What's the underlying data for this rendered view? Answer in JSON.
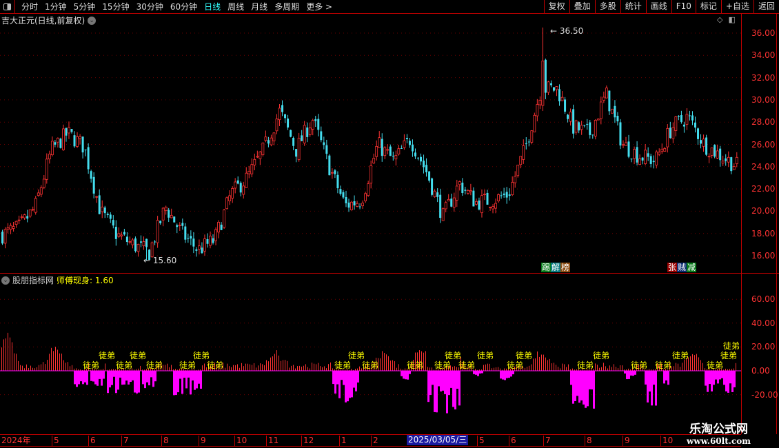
{
  "toolbar": {
    "periods": [
      "分时",
      "1分钟",
      "5分钟",
      "15分钟",
      "30分钟",
      "60分钟",
      "日线",
      "周线",
      "月线",
      "多周期",
      "更多 >"
    ],
    "active_period": "日线",
    "tools": [
      "复权",
      "叠加",
      "多股",
      "统计",
      "画线",
      "F10",
      "标记",
      "+自选",
      "返回"
    ]
  },
  "main": {
    "title": "吉大正元(日线,前复权)",
    "price_ticks": [
      "36.00",
      "34.00",
      "32.00",
      "30.00",
      "28.00",
      "26.00",
      "24.00",
      "22.00",
      "20.00",
      "18.00",
      "16.00"
    ],
    "max_label": "36.50",
    "min_label": "15.60",
    "tag_left": [
      "踢",
      "解",
      "榜"
    ],
    "tag_right": [
      "张",
      "贼",
      "减"
    ],
    "approx_closes": [
      17.9,
      18.5,
      20.3,
      25.5,
      27,
      25.8,
      20,
      17.9,
      17,
      16.3,
      20.4,
      18,
      16.5,
      17.4,
      21.5,
      23,
      25.5,
      29,
      25.5,
      28.3,
      24.1,
      20.5,
      21,
      26,
      24.5,
      26.5,
      23.5,
      19.5,
      22.5,
      20.8,
      21,
      21.5,
      25.5,
      31,
      31,
      27.5,
      27,
      30.5,
      26,
      25,
      24.5,
      27.5,
      28.5,
      26,
      25,
      24.1
    ],
    "colors": {
      "up": "#ff3333",
      "down": "#44ddee"
    }
  },
  "indicator": {
    "source": "股朋指标网",
    "name": "师傅现身",
    "value": ": 1.60",
    "ticks": [
      "60.00",
      "40.00",
      "20.00",
      "0.00",
      "-20.00"
    ],
    "signal_label": "徒弟",
    "colors": {
      "positive": "#ff3333",
      "negative": "#ff00ff",
      "signal": "#ffff00"
    }
  },
  "time_axis": {
    "labels": [
      "2024年",
      "5",
      "6",
      "7",
      "8",
      "9",
      "10",
      "11",
      "12",
      "1",
      "2",
      "5",
      "6",
      "7",
      "8",
      "9",
      "10"
    ],
    "cursor_date": "2025/03/05/三"
  },
  "watermark": {
    "name": "乐淘公式网",
    "url": "www.60lt.com"
  }
}
